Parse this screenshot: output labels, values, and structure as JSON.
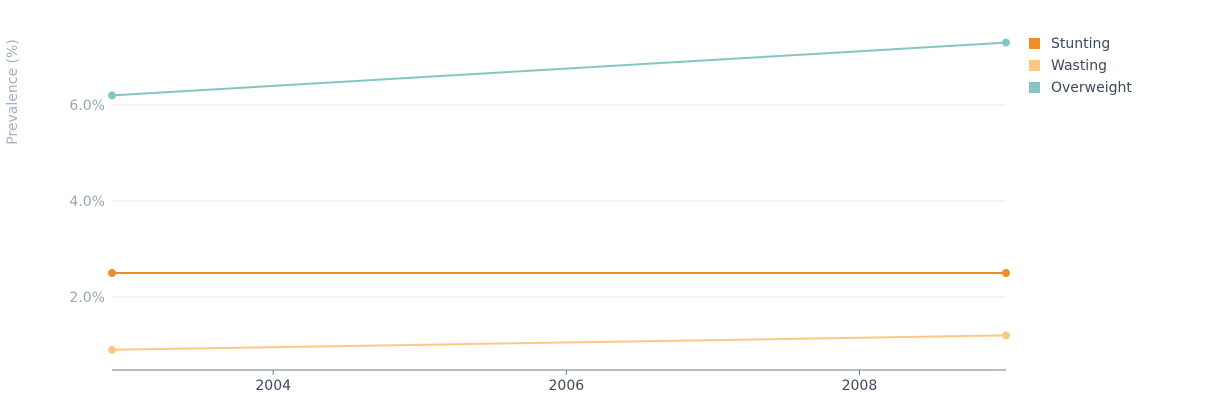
{
  "chart_data": {
    "type": "line",
    "title": "",
    "xlabel": "",
    "ylabel": "Prevalence (%)",
    "xlim": [
      2002.9,
      2009
    ],
    "ylim": [
      0.5,
      7.0
    ],
    "yticks": [
      2.0,
      4.0,
      6.0
    ],
    "ytick_labels": [
      "2.0%",
      "4.0%",
      "6.0%"
    ],
    "xticks": [
      2004,
      2006,
      2008
    ],
    "xtick_labels": [
      "2004",
      "2006",
      "2008"
    ],
    "grid": true,
    "legend_position": "top-right",
    "series": [
      {
        "name": "Stunting",
        "color": "#f28c28",
        "x": [
          2002.9,
          2009
        ],
        "y": [
          2.5,
          2.5
        ]
      },
      {
        "name": "Wasting",
        "color": "#fdc883",
        "x": [
          2002.9,
          2009
        ],
        "y": [
          0.9,
          1.2
        ]
      },
      {
        "name": "Overweight",
        "color": "#86c6c2",
        "x": [
          2002.9,
          2009
        ],
        "y": [
          6.2,
          7.3
        ]
      }
    ]
  }
}
